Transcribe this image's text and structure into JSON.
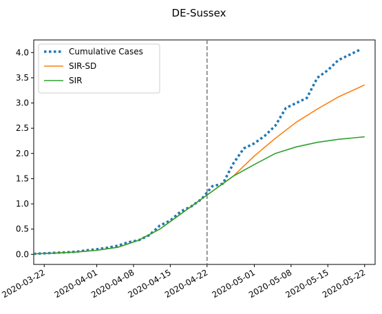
{
  "chart_data": {
    "type": "line",
    "title": "DE-Sussex",
    "xlabel": "",
    "ylabel": "",
    "x_axis_type": "date",
    "xlim": [
      "2020-03-20",
      "2020-05-24"
    ],
    "ylim": [
      -0.2,
      4.25
    ],
    "x_tick_labels": [
      "2020-03-22",
      "2020-04-01",
      "2020-04-08",
      "2020-04-15",
      "2020-04-22",
      "2020-05-01",
      "2020-05-08",
      "2020-05-15",
      "2020-05-22"
    ],
    "y_ticks": [
      0.0,
      0.5,
      1.0,
      1.5,
      2.0,
      2.5,
      3.0,
      3.5,
      4.0
    ],
    "y_tick_labels": [
      "0.0",
      "0.5",
      "1.0",
      "1.5",
      "2.0",
      "2.5",
      "3.0",
      "3.5",
      "4.0"
    ],
    "grid": false,
    "legend_position": "top-left",
    "annotations": [
      {
        "type": "vertical-dashed-line",
        "x": "2020-04-22",
        "color": "#808080"
      }
    ],
    "series": [
      {
        "name": "Cumulative Cases",
        "color": "#1f77b4",
        "style": "dotted",
        "points": [
          [
            "2020-03-20",
            0.01
          ],
          [
            "2020-03-22",
            0.02
          ],
          [
            "2020-03-24",
            0.03
          ],
          [
            "2020-03-26",
            0.04
          ],
          [
            "2020-03-28",
            0.05
          ],
          [
            "2020-03-30",
            0.08
          ],
          [
            "2020-04-01",
            0.1
          ],
          [
            "2020-04-03",
            0.13
          ],
          [
            "2020-04-05",
            0.17
          ],
          [
            "2020-04-07",
            0.24
          ],
          [
            "2020-04-09",
            0.28
          ],
          [
            "2020-04-11",
            0.38
          ],
          [
            "2020-04-13",
            0.57
          ],
          [
            "2020-04-15",
            0.67
          ],
          [
            "2020-04-17",
            0.85
          ],
          [
            "2020-04-19",
            0.95
          ],
          [
            "2020-04-21",
            1.1
          ],
          [
            "2020-04-23",
            1.35
          ],
          [
            "2020-04-25",
            1.4
          ],
          [
            "2020-04-27",
            1.8
          ],
          [
            "2020-04-29",
            2.1
          ],
          [
            "2020-05-01",
            2.2
          ],
          [
            "2020-05-03",
            2.35
          ],
          [
            "2020-05-05",
            2.55
          ],
          [
            "2020-05-07",
            2.9
          ],
          [
            "2020-05-09",
            3.0
          ],
          [
            "2020-05-11",
            3.1
          ],
          [
            "2020-05-13",
            3.5
          ],
          [
            "2020-05-15",
            3.65
          ],
          [
            "2020-05-17",
            3.85
          ],
          [
            "2020-05-19",
            3.95
          ],
          [
            "2020-05-21",
            4.05
          ]
        ]
      },
      {
        "name": "SIR-SD",
        "color": "#ff7f0e",
        "style": "solid",
        "points": [
          [
            "2020-03-20",
            0.01
          ],
          [
            "2020-03-24",
            0.025
          ],
          [
            "2020-03-28",
            0.045
          ],
          [
            "2020-04-01",
            0.08
          ],
          [
            "2020-04-05",
            0.14
          ],
          [
            "2020-04-09",
            0.28
          ],
          [
            "2020-04-13",
            0.5
          ],
          [
            "2020-04-17",
            0.8
          ],
          [
            "2020-04-21",
            1.1
          ],
          [
            "2020-04-23",
            1.25
          ],
          [
            "2020-04-27",
            1.55
          ],
          [
            "2020-05-01",
            1.95
          ],
          [
            "2020-05-05",
            2.3
          ],
          [
            "2020-05-09",
            2.62
          ],
          [
            "2020-05-13",
            2.88
          ],
          [
            "2020-05-17",
            3.12
          ],
          [
            "2020-05-21",
            3.31
          ],
          [
            "2020-05-22",
            3.36
          ]
        ]
      },
      {
        "name": "SIR",
        "color": "#2ca02c",
        "style": "solid",
        "points": [
          [
            "2020-03-20",
            0.01
          ],
          [
            "2020-03-24",
            0.025
          ],
          [
            "2020-03-28",
            0.045
          ],
          [
            "2020-04-01",
            0.08
          ],
          [
            "2020-04-05",
            0.14
          ],
          [
            "2020-04-09",
            0.28
          ],
          [
            "2020-04-13",
            0.5
          ],
          [
            "2020-04-17",
            0.8
          ],
          [
            "2020-04-21",
            1.1
          ],
          [
            "2020-04-23",
            1.25
          ],
          [
            "2020-04-27",
            1.55
          ],
          [
            "2020-05-01",
            1.78
          ],
          [
            "2020-05-05",
            2.0
          ],
          [
            "2020-05-09",
            2.13
          ],
          [
            "2020-05-13",
            2.22
          ],
          [
            "2020-05-17",
            2.28
          ],
          [
            "2020-05-21",
            2.32
          ],
          [
            "2020-05-22",
            2.33
          ]
        ]
      }
    ]
  }
}
